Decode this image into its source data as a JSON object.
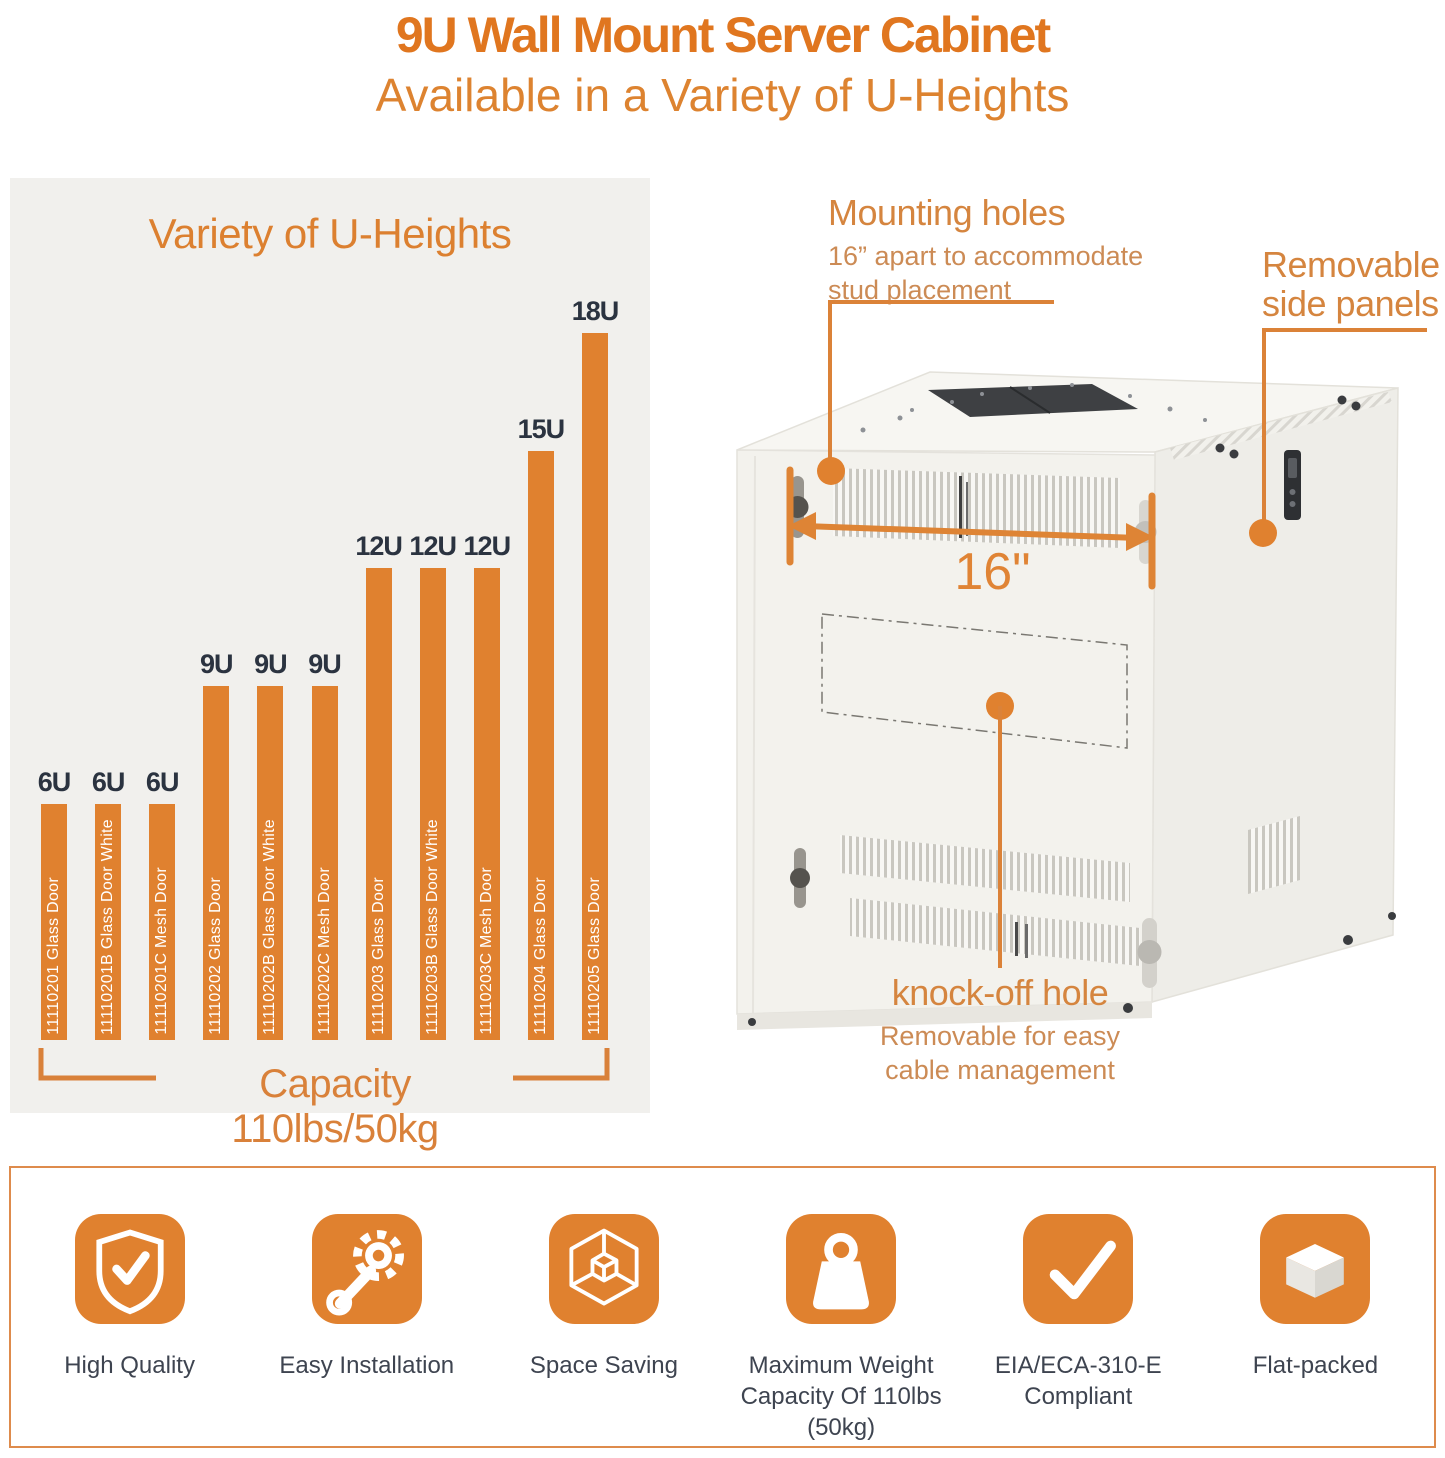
{
  "header": {
    "title": "9U Wall Mount Server Cabinet",
    "subtitle": "Available in a Variety of U-Heights"
  },
  "chart": {
    "title": "Variety of U-Heights",
    "capacity_label": "Capacity 110lbs/50kg"
  },
  "chart_data": {
    "type": "bar",
    "title": "Variety of U-Heights",
    "categories": [
      "11110201 Glass Door",
      "11110201B Glass Door White",
      "11110201C Mesh Door",
      "11110202 Glass Door",
      "11110202B Glass Door White",
      "11110202C Mesh Door",
      "11110203 Glass Door",
      "11110203B Glass Door White",
      "11110203C Mesh Door",
      "11110204 Glass Door",
      "11110205 Glass Door"
    ],
    "values": [
      6,
      6,
      6,
      9,
      9,
      9,
      12,
      12,
      12,
      15,
      18
    ],
    "bar_labels": [
      "6U",
      "6U",
      "6U",
      "9U",
      "9U",
      "9U",
      "12U",
      "12U",
      "12U",
      "15U",
      "18U"
    ],
    "unit": "U",
    "annotation": "Capacity 110lbs/50kg",
    "bar_color": "#E0812F",
    "ylim": [
      0,
      19
    ],
    "grid": false,
    "legend": false
  },
  "cabinet": {
    "mounting_holes_title": "Mounting holes",
    "mounting_holes_desc1": "16” apart to accommodate",
    "mounting_holes_desc2": "stud placement",
    "side_panels_line1": "Removable",
    "side_panels_line2": "side panels",
    "dimension_label": "16\"",
    "knockoff_title": "knock-off hole",
    "knockoff_desc1": "Removable for easy",
    "knockoff_desc2": "cable management"
  },
  "features": [
    {
      "icon": "shield-check-icon",
      "label": "High Quality"
    },
    {
      "icon": "gear-wrench-icon",
      "label": "Easy Installation"
    },
    {
      "icon": "cube-icon",
      "label": "Space Saving"
    },
    {
      "icon": "weight-icon",
      "label": "Maximum Weight Capacity Of 110lbs (50kg)"
    },
    {
      "icon": "checkmark-icon",
      "label": "EIA/ECA-310-E Compliant"
    },
    {
      "icon": "flat-box-icon",
      "label": "Flat-packed"
    }
  ],
  "colors": {
    "accent_orange": "#E0812F",
    "line_orange": "#D9813A",
    "title_orange": "#E0761F",
    "label_navy": "#2B3340",
    "panel_bg": "#F1F0ED",
    "feature_text": "#3E4450"
  }
}
